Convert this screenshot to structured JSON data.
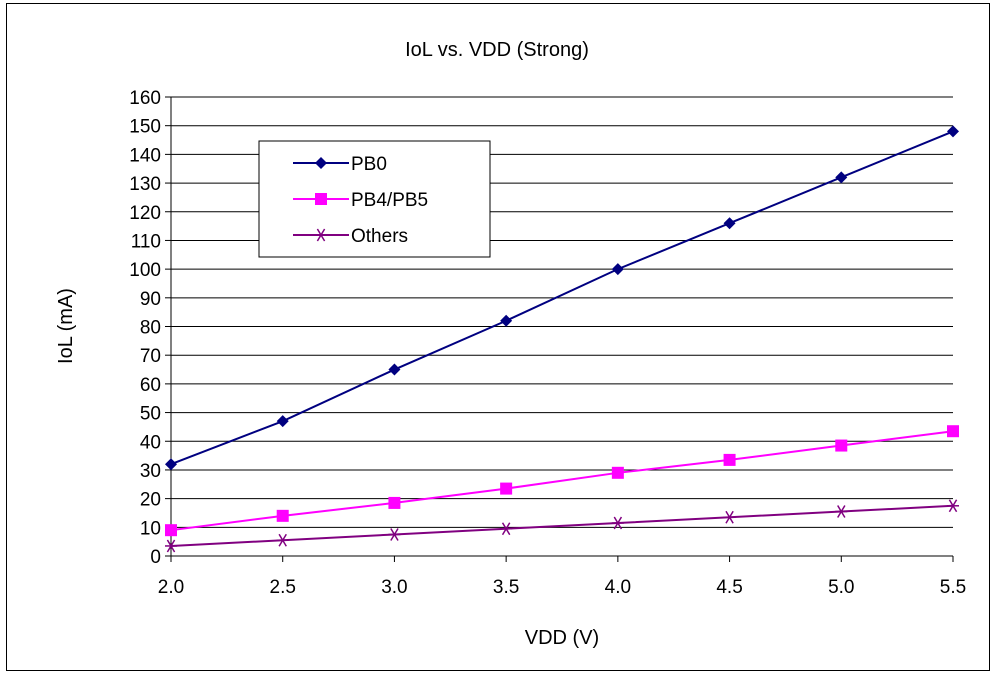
{
  "chart_data": {
    "type": "line",
    "title": "IoL vs. VDD (Strong)",
    "xlabel": "VDD (V)",
    "ylabel": "IoL (mA)",
    "x": [
      2.0,
      2.5,
      3.0,
      3.5,
      4.0,
      4.5,
      5.0,
      5.5
    ],
    "x_tick_labels": [
      "2.0",
      "2.5",
      "3.0",
      "3.5",
      "4.0",
      "4.5",
      "5.0",
      "5.5"
    ],
    "xlim": [
      2.0,
      5.5
    ],
    "ylim": [
      0,
      160
    ],
    "y_ticks": [
      0,
      10,
      20,
      30,
      40,
      50,
      60,
      70,
      80,
      90,
      100,
      110,
      120,
      130,
      140,
      150,
      160
    ],
    "grid": "horizontal",
    "legend_position": "top-left",
    "series": [
      {
        "name": "PB0",
        "color": "#000080",
        "marker": "diamond",
        "values": [
          32,
          47,
          65,
          82,
          100,
          116,
          132,
          148
        ]
      },
      {
        "name": "PB4/PB5",
        "color": "#FF00FF",
        "marker": "square",
        "values": [
          9,
          14,
          18.5,
          23.5,
          29,
          33.5,
          38.5,
          43.5
        ]
      },
      {
        "name": "Others",
        "color": "#800080",
        "marker": "asterisk",
        "values": [
          3.5,
          5.5,
          7.5,
          9.5,
          11.5,
          13.5,
          15.5,
          17.5
        ]
      }
    ]
  }
}
